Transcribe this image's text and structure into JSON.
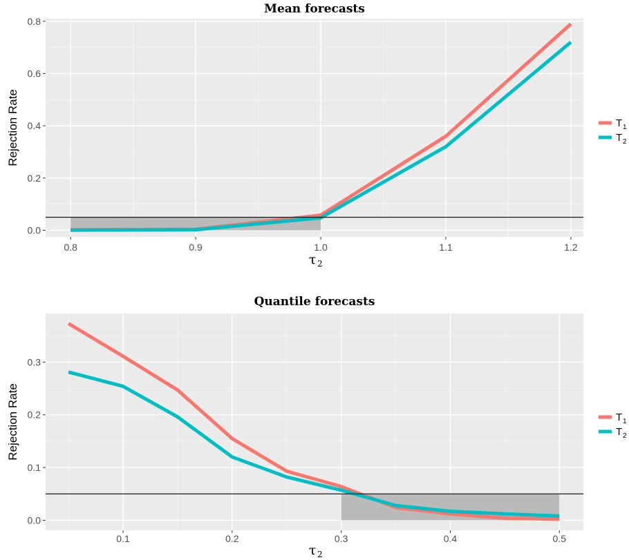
{
  "chart_data": [
    {
      "type": "line",
      "title": "Mean forecasts",
      "xlabel": "τ",
      "xlabel_sub": "2",
      "ylabel": "Rejection Rate",
      "x": [
        0.8,
        0.9,
        1.0,
        1.1,
        1.2
      ],
      "xlim": [
        0.78,
        1.21
      ],
      "ylim": [
        -0.025,
        0.81
      ],
      "xticks": [
        0.8,
        0.9,
        1.0,
        1.1,
        1.2
      ],
      "xtick_labels": [
        "0.8",
        "0.9",
        "1.0",
        "1.1",
        "1.2"
      ],
      "yticks": [
        0.0,
        0.2,
        0.4,
        0.6,
        0.8
      ],
      "ytick_labels": [
        "0.0",
        "0.2",
        "0.4",
        "0.6",
        "0.8"
      ],
      "xminor": [
        0.85,
        0.95,
        1.05,
        1.15
      ],
      "yminor": [
        0.1,
        0.3,
        0.5,
        0.7
      ],
      "hline": 0.05,
      "shade": {
        "x": [
          0.8,
          1.0
        ],
        "y": [
          0.0,
          0.05
        ]
      },
      "legend_position": "right",
      "series": [
        {
          "name": "T",
          "sub": "1",
          "color": "#F8766D",
          "values": [
            0.002,
            0.004,
            0.058,
            0.36,
            0.79
          ]
        },
        {
          "name": "T",
          "sub": "2",
          "color": "#00BFC4",
          "values": [
            0.001,
            0.002,
            0.048,
            0.32,
            0.72
          ]
        }
      ]
    },
    {
      "type": "line",
      "title": "Quantile forecasts",
      "xlabel": "τ",
      "xlabel_sub": "2",
      "ylabel": "Rejection Rate",
      "x": [
        0.05,
        0.1,
        0.15,
        0.2,
        0.25,
        0.3,
        0.35,
        0.4,
        0.45,
        0.5
      ],
      "xlim": [
        0.029,
        0.522
      ],
      "ylim": [
        -0.019,
        0.392
      ],
      "xticks": [
        0.1,
        0.2,
        0.3,
        0.4,
        0.5
      ],
      "xtick_labels": [
        "0.1",
        "0.2",
        "0.3",
        "0.4",
        "0.5"
      ],
      "yticks": [
        0.0,
        0.1,
        0.2,
        0.3
      ],
      "ytick_labels": [
        "0.0",
        "0.1",
        "0.2",
        "0.3"
      ],
      "xminor": [
        0.05,
        0.15,
        0.25,
        0.35,
        0.45
      ],
      "yminor": [
        0.05,
        0.15,
        0.25,
        0.35
      ],
      "hline": 0.05,
      "shade": {
        "x": [
          0.3,
          0.5
        ],
        "y": [
          0.0,
          0.05
        ]
      },
      "legend_position": "right",
      "series": [
        {
          "name": "T",
          "sub": "1",
          "color": "#F8766D",
          "values": [
            0.373,
            0.311,
            0.247,
            0.155,
            0.093,
            0.064,
            0.024,
            0.012,
            0.004,
            0.002
          ]
        },
        {
          "name": "T",
          "sub": "2",
          "color": "#00BFC4",
          "values": [
            0.281,
            0.254,
            0.196,
            0.12,
            0.082,
            0.057,
            0.028,
            0.017,
            0.012,
            0.008
          ]
        }
      ]
    }
  ]
}
